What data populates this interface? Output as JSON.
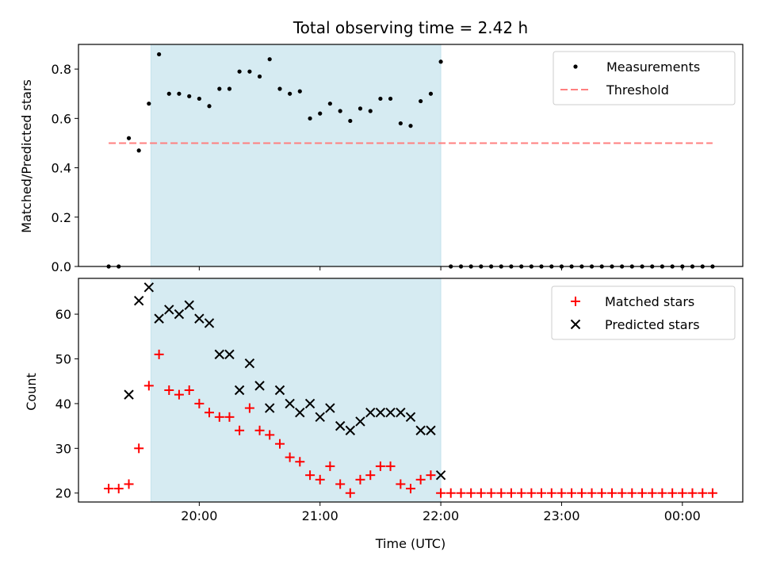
{
  "chart_data": {
    "title": "Total observing time = 2.42 h",
    "xlabel": "Time (UTC)",
    "highlight_span": {
      "from": 19.6,
      "to": 22.0,
      "color": "#add8e6"
    },
    "x_ticks": [
      {
        "value": 20.0,
        "label": "20:00"
      },
      {
        "value": 21.0,
        "label": "21:00"
      },
      {
        "value": 22.0,
        "label": "22:00"
      },
      {
        "value": 23.0,
        "label": "23:00"
      },
      {
        "value": 24.0,
        "label": "00:00"
      }
    ],
    "x_range": [
      19.0,
      24.5
    ],
    "top_panel": {
      "type": "scatter",
      "ylabel": "Matched/Predicted stars",
      "ylim": [
        0,
        0.9
      ],
      "y_ticks": [
        {
          "value": 0.0,
          "label": "0.0"
        },
        {
          "value": 0.2,
          "label": "0.2"
        },
        {
          "value": 0.4,
          "label": "0.4"
        },
        {
          "value": 0.6,
          "label": "0.6"
        },
        {
          "value": 0.8,
          "label": "0.8"
        }
      ],
      "legend": [
        {
          "label": "Measurements",
          "color": "#000000",
          "marker": "dot"
        },
        {
          "label": "Threshold",
          "color": "#ff7f7f",
          "marker": "dashed-line"
        }
      ],
      "threshold": {
        "value": 0.5,
        "x_from": 19.25,
        "x_to": 24.25
      },
      "measurements": {
        "x": [
          19.25,
          19.333,
          19.417,
          19.5,
          19.583,
          19.667,
          19.75,
          19.833,
          19.917,
          20.0,
          20.083,
          20.167,
          20.25,
          20.333,
          20.417,
          20.5,
          20.583,
          20.667,
          20.75,
          20.833,
          20.917,
          21.0,
          21.083,
          21.167,
          21.25,
          21.333,
          21.417,
          21.5,
          21.583,
          21.667,
          21.75,
          21.833,
          21.917,
          22.0,
          22.083,
          22.167,
          22.25,
          22.333,
          22.417,
          22.5,
          22.583,
          22.667,
          22.75,
          22.833,
          22.917,
          23.0,
          23.083,
          23.167,
          23.25,
          23.333,
          23.417,
          23.5,
          23.583,
          23.667,
          23.75,
          23.833,
          23.917,
          24.0,
          24.083,
          24.167,
          24.25
        ],
        "y": [
          0,
          0,
          0.52,
          0.47,
          0.66,
          0.86,
          0.7,
          0.7,
          0.69,
          0.68,
          0.65,
          0.72,
          0.72,
          0.79,
          0.79,
          0.77,
          0.84,
          0.72,
          0.7,
          0.71,
          0.6,
          0.62,
          0.66,
          0.63,
          0.59,
          0.64,
          0.63,
          0.68,
          0.68,
          0.58,
          0.57,
          0.67,
          0.7,
          0.83,
          0,
          0,
          0,
          0,
          0,
          0,
          0,
          0,
          0,
          0,
          0,
          0,
          0,
          0,
          0,
          0,
          0,
          0,
          0,
          0,
          0,
          0,
          0,
          0,
          0,
          0,
          0
        ]
      }
    },
    "bottom_panel": {
      "type": "scatter",
      "ylabel": "Count",
      "ylim": [
        18,
        68
      ],
      "y_ticks": [
        {
          "value": 20,
          "label": "20"
        },
        {
          "value": 30,
          "label": "30"
        },
        {
          "value": 40,
          "label": "40"
        },
        {
          "value": 50,
          "label": "50"
        },
        {
          "value": 60,
          "label": "60"
        }
      ],
      "legend": [
        {
          "label": "Matched stars",
          "color": "#ff0000",
          "marker": "plus"
        },
        {
          "label": "Predicted stars",
          "color": "#000000",
          "marker": "x"
        }
      ],
      "matched": {
        "x": [
          19.25,
          19.333,
          19.417,
          19.5,
          19.583,
          19.667,
          19.75,
          19.833,
          19.917,
          20.0,
          20.083,
          20.167,
          20.25,
          20.333,
          20.417,
          20.5,
          20.583,
          20.667,
          20.75,
          20.833,
          20.917,
          21.0,
          21.083,
          21.167,
          21.25,
          21.333,
          21.417,
          21.5,
          21.583,
          21.667,
          21.75,
          21.833,
          21.917,
          22.0,
          22.083,
          22.167,
          22.25,
          22.333,
          22.417,
          22.5,
          22.583,
          22.667,
          22.75,
          22.833,
          22.917,
          23.0,
          23.083,
          23.167,
          23.25,
          23.333,
          23.417,
          23.5,
          23.583,
          23.667,
          23.75,
          23.833,
          23.917,
          24.0,
          24.083,
          24.167,
          24.25
        ],
        "y": [
          21,
          21,
          22,
          30,
          44,
          51,
          43,
          42,
          43,
          40,
          38,
          37,
          37,
          34,
          39,
          34,
          33,
          31,
          28,
          27,
          24,
          23,
          26,
          22,
          20,
          23,
          24,
          26,
          26,
          22,
          21,
          23,
          24,
          20,
          20,
          20,
          20,
          20,
          20,
          20,
          20,
          20,
          20,
          20,
          20,
          20,
          20,
          20,
          20,
          20,
          20,
          20,
          20,
          20,
          20,
          20,
          20,
          20,
          20,
          20,
          20
        ]
      },
      "predicted": {
        "x": [
          19.417,
          19.5,
          19.583,
          19.667,
          19.75,
          19.833,
          19.917,
          20.0,
          20.083,
          20.167,
          20.25,
          20.333,
          20.417,
          20.5,
          20.583,
          20.667,
          20.75,
          20.833,
          20.917,
          21.0,
          21.083,
          21.167,
          21.25,
          21.333,
          21.417,
          21.5,
          21.583,
          21.667,
          21.75,
          21.833,
          21.917,
          22.0
        ],
        "y": [
          42,
          63,
          66,
          59,
          61,
          60,
          62,
          59,
          58,
          51,
          51,
          43,
          49,
          44,
          39,
          43,
          40,
          38,
          40,
          37,
          39,
          35,
          34,
          36,
          38,
          38,
          38,
          38,
          37,
          34,
          34,
          24
        ]
      }
    }
  }
}
